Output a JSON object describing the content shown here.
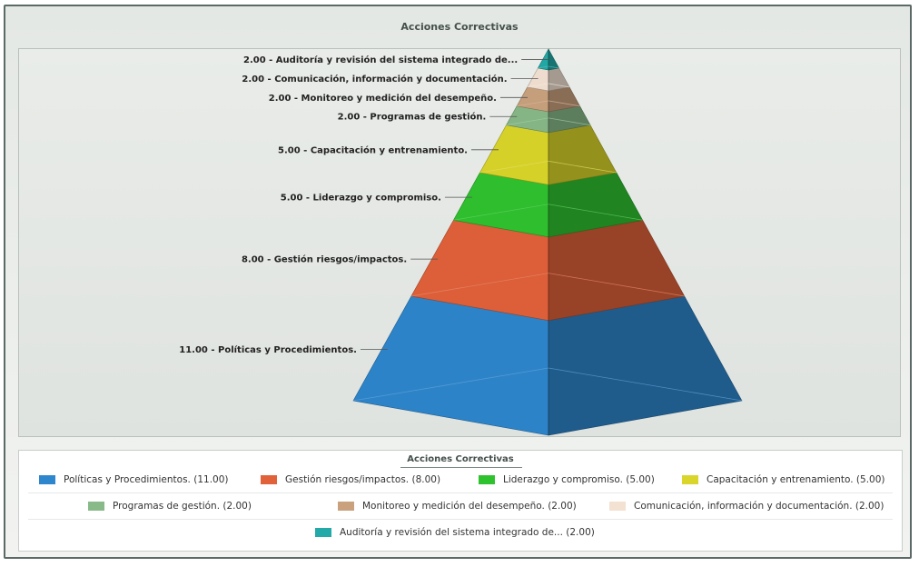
{
  "chart_data": {
    "type": "pyramid",
    "title": "Acciones Correctivas",
    "legend_title": "Acciones Correctivas",
    "legend_placement": "bottom",
    "order": "bottom-to-top",
    "series": [
      {
        "label": "Políticas y Procedimientos.",
        "value": 11.0,
        "data_label": "11.00 - Políticas y Procedimientos.",
        "legend": "Políticas y Procedimientos. (11.00)",
        "color": "#2e86cc"
      },
      {
        "label": "Gestión riesgos/impactos.",
        "value": 8.0,
        "data_label": "8.00 - Gestión riesgos/impactos.",
        "legend": "Gestión riesgos/impactos. (8.00)",
        "color": "#e0613a"
      },
      {
        "label": "Liderazgo y compromiso.",
        "value": 5.0,
        "data_label": "5.00 - Liderazgo y compromiso.",
        "legend": "Liderazgo y compromiso. (5.00)",
        "color": "#2fc22f"
      },
      {
        "label": "Capacitación y entrenamiento.",
        "value": 5.0,
        "data_label": "5.00 - Capacitación y entrenamiento.",
        "legend": "Capacitación y entrenamiento. (5.00)",
        "color": "#d9d52a"
      },
      {
        "label": "Programas de gestión.",
        "value": 2.0,
        "data_label": "2.00 - Programas de gestión.",
        "legend": "Programas de gestión. (2.00)",
        "color": "#88b988"
      },
      {
        "label": "Monitoreo y medición del desempeño.",
        "value": 2.0,
        "data_label": "2.00 - Monitoreo y medición del desempeño.",
        "legend": "Monitoreo y medición del desempeño. (2.00)",
        "color": "#c9a17d"
      },
      {
        "label": "Comunicación, información y documentación.",
        "value": 2.0,
        "data_label": "2.00 - Comunicación, información y documentación.",
        "legend": "Comunicación, información y documentación. (2.00)",
        "color": "#f3e2d2"
      },
      {
        "label": "Auditoría y revisión del sistema integrado de...",
        "value": 2.0,
        "data_label": "2.00 - Auditoría y revisión del sistema integrado de...",
        "legend": "Auditoría y revisión del sistema integrado de... (2.00)",
        "color": "#23aaa8"
      }
    ]
  }
}
